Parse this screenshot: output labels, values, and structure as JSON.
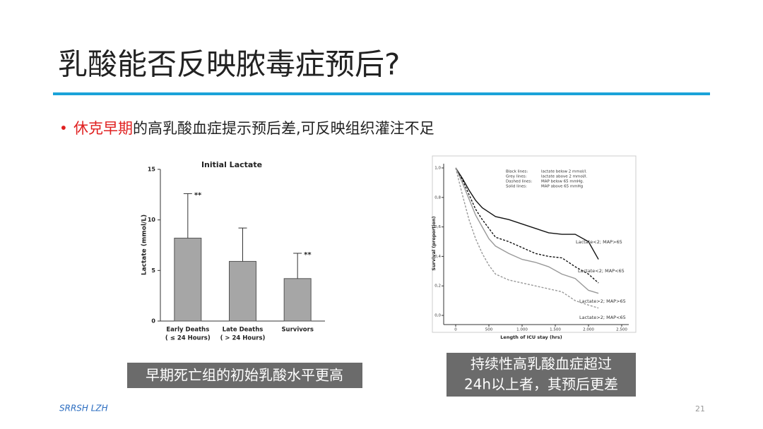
{
  "slide": {
    "title": "乳酸能否反映脓毒症预后?",
    "bullet": {
      "highlight": "休克早期",
      "text": "的高乳酸血症提示预后差,可反映组织灌注不足"
    },
    "caption_left": "早期死亡组的初始乳酸水平更高",
    "caption_right": [
      "持续性高乳酸血症超过",
      "24h以上者，其预后更差"
    ],
    "footer": "SRRSH LZH",
    "page_number": "21"
  },
  "chart_data": [
    {
      "type": "bar",
      "title": "Initial Lactate",
      "y_label": "Lactate (mmol/L)",
      "categories": [
        [
          "Early Deaths",
          "( ≤ 24 Hours)"
        ],
        [
          "Late Deaths",
          "( > 24 Hours)"
        ],
        [
          "Survivors"
        ]
      ],
      "values": [
        8.2,
        5.9,
        4.2
      ],
      "errors": [
        4.4,
        3.3,
        2.5
      ],
      "annotations": [
        "**",
        null,
        "**"
      ],
      "color": "#a6a6a6",
      "ylim": [
        0,
        15
      ],
      "yticks": [
        0,
        5,
        10,
        15
      ]
    },
    {
      "type": "line",
      "x_label": "Length of ICU stay (hrs)",
      "y_label": "Survival (proportion)",
      "notes": [
        {
          "key": "Black lines:",
          "text": "lactate below 2 mmol/l."
        },
        {
          "key": "Grey lines:",
          "text": "lactate above 2 mmol/l."
        },
        {
          "key": "Dashed lines:",
          "text": "MAP below 65 mmHg."
        },
        {
          "key": "Solid lines:",
          "text": "MAP above 65 mmHg"
        }
      ],
      "x": [
        0,
        100,
        200,
        300,
        400,
        500,
        600,
        800,
        1000,
        1200,
        1400,
        1600,
        1800,
        2000,
        2150
      ],
      "series": [
        {
          "name": "Lactate<2; MAP>65",
          "color": "#111111",
          "dashed": false,
          "values": [
            1.0,
            0.93,
            0.85,
            0.78,
            0.73,
            0.7,
            0.67,
            0.65,
            0.62,
            0.59,
            0.56,
            0.55,
            0.55,
            0.5,
            0.38
          ]
        },
        {
          "name": "Lactate<2; MAP<65",
          "color": "#111111",
          "dashed": true,
          "values": [
            1.0,
            0.92,
            0.82,
            0.72,
            0.65,
            0.59,
            0.53,
            0.5,
            0.46,
            0.42,
            0.4,
            0.39,
            0.33,
            0.28,
            0.22
          ]
        },
        {
          "name": "Lactate>2; MAP>65",
          "color": "#999999",
          "dashed": false,
          "values": [
            1.0,
            0.9,
            0.79,
            0.68,
            0.6,
            0.52,
            0.47,
            0.42,
            0.38,
            0.36,
            0.33,
            0.28,
            0.25,
            0.17,
            0.15
          ]
        },
        {
          "name": "Lactate>2; MAP<65",
          "color": "#999999",
          "dashed": true,
          "values": [
            1.0,
            0.82,
            0.65,
            0.52,
            0.42,
            0.34,
            0.28,
            0.24,
            0.22,
            0.2,
            0.18,
            0.16,
            0.1,
            0.07,
            0.05
          ]
        }
      ],
      "xlim": [
        0,
        2500
      ],
      "ylim": [
        0,
        1
      ],
      "xticks": [
        0,
        500,
        {
          "value": 1000,
          "label": "1.000"
        },
        {
          "value": 1500,
          "label": "1.500"
        },
        {
          "value": 2000,
          "label": "2.000"
        },
        {
          "value": 2500,
          "label": "2.500"
        }
      ],
      "yticks": [
        {
          "value": 0,
          "label": "0,0"
        },
        {
          "value": 0.2,
          "label": "0,2"
        },
        {
          "value": 0.4,
          "label": "0,4"
        },
        {
          "value": 0.6,
          "label": "0,6"
        },
        {
          "value": 0.8,
          "label": "0,8"
        },
        {
          "value": 1,
          "label": "1,0"
        }
      ]
    }
  ]
}
